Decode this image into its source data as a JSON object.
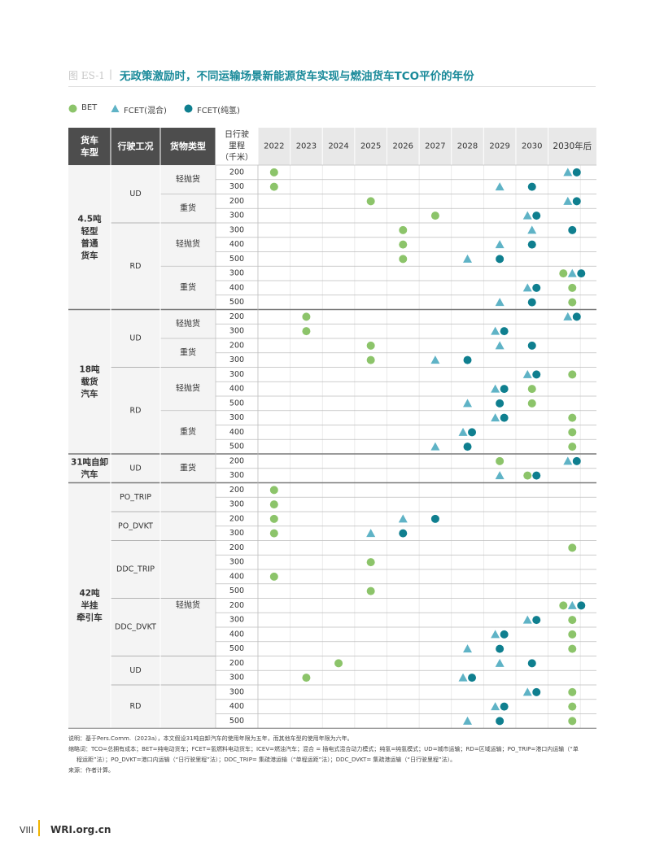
{
  "figure": {
    "label": "图 ES-1",
    "title": "无政策激励时，不同运输场景新能源货车实现与燃油货车TCO平价的年份"
  },
  "legend": [
    {
      "key": "BET",
      "label": "BET",
      "shape": "circle",
      "color": "#8cc46a"
    },
    {
      "key": "FCET_mix",
      "label": "FCET(混合)",
      "shape": "triangle",
      "color": "#5fb3c6"
    },
    {
      "key": "FCET_pure",
      "label": "FCET(纯氢)",
      "shape": "circle",
      "color": "#0f7f8f"
    }
  ],
  "chart_data": {
    "type": "table",
    "headers": {
      "truck_type": "货车车型",
      "condition": "行驶工况",
      "cargo": "货物类型",
      "mileage": "日行驶里程（千米）"
    },
    "years": [
      "2022",
      "2023",
      "2024",
      "2025",
      "2026",
      "2027",
      "2028",
      "2029",
      "2030",
      "2030年后"
    ],
    "groups": [
      {
        "truck": "4.5吨轻型普通货车",
        "rows": 10,
        "conditions": [
          {
            "label": "UD",
            "rows": 4
          },
          {
            "label": "RD",
            "rows": 6
          }
        ],
        "cargos": [
          {
            "label": "轻抛货",
            "rows": 2
          },
          {
            "label": "重货",
            "rows": 2
          },
          {
            "label": "轻抛货",
            "rows": 3
          },
          {
            "label": "重货",
            "rows": 3
          }
        ]
      },
      {
        "truck": "18吨载货汽车",
        "rows": 10,
        "conditions": [
          {
            "label": "UD",
            "rows": 4
          },
          {
            "label": "RD",
            "rows": 6
          }
        ],
        "cargos": [
          {
            "label": "轻抛货",
            "rows": 2
          },
          {
            "label": "重货",
            "rows": 2
          },
          {
            "label": "轻抛货",
            "rows": 3
          },
          {
            "label": "重货",
            "rows": 3
          }
        ]
      },
      {
        "truck": "31吨自卸汽车",
        "rows": 2,
        "conditions": [
          {
            "label": "UD",
            "rows": 2
          }
        ],
        "cargos": [
          {
            "label": "重货",
            "rows": 2
          }
        ]
      },
      {
        "truck": "42吨半挂牵引车",
        "rows": 17,
        "conditions": [
          {
            "label": "PO_TRIP",
            "rows": 2
          },
          {
            "label": "PO_DVKT",
            "rows": 2
          },
          {
            "label": "DDC_TRIP",
            "rows": 4
          },
          {
            "label": "DDC_DVKT",
            "rows": 4
          },
          {
            "label": "UD",
            "rows": 2
          },
          {
            "label": "RD",
            "rows": 3
          }
        ],
        "cargos": [
          {
            "label": "轻抛货",
            "rows": 17
          }
        ]
      }
    ],
    "rows": [
      {
        "mileage": "200",
        "BET": "2022",
        "FCET_mix": "2030年后",
        "FCET_pure": "2030年后"
      },
      {
        "mileage": "300",
        "BET": "2022",
        "FCET_mix": "2029",
        "FCET_pure": "2030"
      },
      {
        "mileage": "200",
        "BET": "2025",
        "FCET_mix": "2030年后",
        "FCET_pure": "2030年后"
      },
      {
        "mileage": "300",
        "BET": "2027",
        "FCET_mix": "2030",
        "FCET_pure": "2030"
      },
      {
        "mileage": "300",
        "BET": "2026",
        "FCET_mix": "2030",
        "FCET_pure": "2030年后"
      },
      {
        "mileage": "400",
        "BET": "2026",
        "FCET_mix": "2029",
        "FCET_pure": "2030"
      },
      {
        "mileage": "500",
        "BET": "2026",
        "FCET_mix": "2028",
        "FCET_pure": "2029"
      },
      {
        "mileage": "300",
        "BET": "2030年后",
        "FCET_mix": "2030年后",
        "FCET_pure": "2030年后"
      },
      {
        "mileage": "400",
        "BET": "2030年后",
        "FCET_mix": "2030",
        "FCET_pure": "2030"
      },
      {
        "mileage": "500",
        "BET": "2030年后",
        "FCET_mix": "2029",
        "FCET_pure": "2030"
      },
      {
        "mileage": "200",
        "BET": "2023",
        "FCET_mix": "2030年后",
        "FCET_pure": "2030年后"
      },
      {
        "mileage": "300",
        "BET": "2023",
        "FCET_mix": "2029",
        "FCET_pure": "2029"
      },
      {
        "mileage": "200",
        "BET": "2025",
        "FCET_mix": "2029",
        "FCET_pure": "2030"
      },
      {
        "mileage": "300",
        "BET": "2025",
        "FCET_mix": "2027",
        "FCET_pure": "2028"
      },
      {
        "mileage": "300",
        "BET": "2030年后",
        "FCET_mix": "2030",
        "FCET_pure": "2030"
      },
      {
        "mileage": "400",
        "BET": "2030",
        "FCET_mix": "2029",
        "FCET_pure": "2029"
      },
      {
        "mileage": "500",
        "BET": "2030",
        "FCET_mix": "2028",
        "FCET_pure": "2029"
      },
      {
        "mileage": "300",
        "BET": "2030年后",
        "FCET_mix": "2029",
        "FCET_pure": "2029"
      },
      {
        "mileage": "400",
        "BET": "2030年后",
        "FCET_mix": "2028",
        "FCET_pure": "2028"
      },
      {
        "mileage": "500",
        "BET": "2030年后",
        "FCET_mix": "2027",
        "FCET_pure": "2028"
      },
      {
        "mileage": "200",
        "BET": "2029",
        "FCET_mix": "2030年后",
        "FCET_pure": "2030年后"
      },
      {
        "mileage": "300",
        "BET": "2030",
        "FCET_mix": "2029",
        "FCET_pure": "2030"
      },
      {
        "mileage": "200",
        "BET": "2022",
        "FCET_mix": null,
        "FCET_pure": null
      },
      {
        "mileage": "300",
        "BET": "2022",
        "FCET_mix": null,
        "FCET_pure": null
      },
      {
        "mileage": "200",
        "BET": "2022",
        "FCET_mix": "2026",
        "FCET_pure": "2027"
      },
      {
        "mileage": "300",
        "BET": "2022",
        "FCET_mix": "2025",
        "FCET_pure": "2026"
      },
      {
        "mileage": "200",
        "BET": "2030年后",
        "FCET_mix": null,
        "FCET_pure": null
      },
      {
        "mileage": "300",
        "BET": "2025",
        "FCET_mix": null,
        "FCET_pure": null
      },
      {
        "mileage": "400",
        "BET": "2022",
        "FCET_mix": null,
        "FCET_pure": null
      },
      {
        "mileage": "500",
        "BET": "2025",
        "FCET_mix": null,
        "FCET_pure": null
      },
      {
        "mileage": "200",
        "BET": "2030年后",
        "FCET_mix": "2030年后",
        "FCET_pure": "2030年后"
      },
      {
        "mileage": "300",
        "BET": "2030年后",
        "FCET_mix": "2030",
        "FCET_pure": "2030"
      },
      {
        "mileage": "400",
        "BET": "2030年后",
        "FCET_mix": "2029",
        "FCET_pure": "2029"
      },
      {
        "mileage": "500",
        "BET": "2030年后",
        "FCET_mix": "2028",
        "FCET_pure": "2029"
      },
      {
        "mileage": "200",
        "BET": "2024",
        "FCET_mix": "2029",
        "FCET_pure": "2030"
      },
      {
        "mileage": "300",
        "BET": "2023",
        "FCET_mix": "2028",
        "FCET_pure": "2028"
      },
      {
        "mileage": "300",
        "BET": "2030年后",
        "FCET_mix": "2030",
        "FCET_pure": "2030"
      },
      {
        "mileage": "400",
        "BET": "2030年后",
        "FCET_mix": "2029",
        "FCET_pure": "2029"
      },
      {
        "mileage": "500",
        "BET": "2030年后",
        "FCET_mix": "2028",
        "FCET_pure": "2029"
      }
    ]
  },
  "notes": {
    "line1": "说明：基于Pers.Comm.（2023a），本文假设31吨自卸汽车的使用年限为五年，而其他车型的使用年限为六年。",
    "line2": "缩略词：TCO=总拥有成本；BET=纯电动货车；FCET=氢燃料电动货车；ICEV=燃油汽车；混合 = 插电式混合动力模式；纯氢=纯氢模式；UD=城市运输；RD=区域运输；PO_TRIP=港口内运输（“单",
    "line3": "程运距”法）；PO_DVKT=港口内运输（“日行驶里程”法）；DDC_TRIP= 集疏港运输（“单程运距”法）；DDC_DVKT= 集疏港运输（“日行驶里程”法）。",
    "line4": "来源：作者计算。"
  },
  "footer": {
    "page": "VIII",
    "site": "WRI.org.cn"
  }
}
